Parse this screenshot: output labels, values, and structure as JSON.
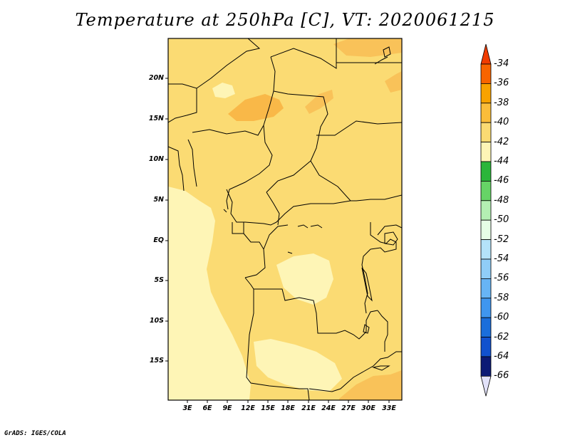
{
  "title": "Temperature at 250hPa [C], VT: 2020061215",
  "credit": "GrADS: IGES/COLA",
  "map": {
    "lat_labels": [
      "20N",
      "15N",
      "10N",
      "5N",
      "EQ",
      "5S",
      "10S",
      "15S"
    ],
    "lon_labels": [
      "3E",
      "6E",
      "9E",
      "12E",
      "15E",
      "18E",
      "21E",
      "24E",
      "27E",
      "30E",
      "33E"
    ]
  },
  "colorbar": {
    "labels": [
      "-34",
      "-36",
      "-38",
      "-40",
      "-42",
      "-44",
      "-46",
      "-48",
      "-50",
      "-52",
      "-54",
      "-56",
      "-58",
      "-60",
      "-62",
      "-64",
      "-66"
    ],
    "colors": [
      "#f03c00",
      "#f86400",
      "#f9a200",
      "#fbbd3a",
      "#fbdb73",
      "#fef5b6",
      "#2bb63a",
      "#66d466",
      "#b4efb3",
      "#e6fde6",
      "#b4e3f9",
      "#90cdf7",
      "#67b4f5",
      "#3f96ef",
      "#1a6edb",
      "#1151ce",
      "#0c1a75",
      "#e2e2fa"
    ]
  }
}
